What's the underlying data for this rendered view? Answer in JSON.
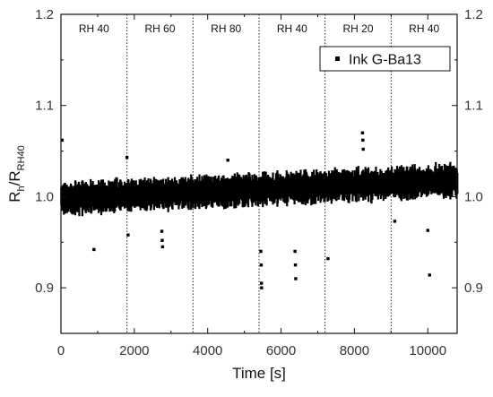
{
  "chart_data": {
    "type": "scatter",
    "xlabel": "Time [s]",
    "ylabel_main": "R",
    "ylabel_sub1": "h",
    "ylabel_mid": "/R",
    "ylabel_sub2": "RH40",
    "xlim": [
      0,
      10800
    ],
    "ylim": [
      0.85,
      1.2
    ],
    "xticks": [
      0,
      2000,
      4000,
      6000,
      8000,
      10000
    ],
    "xtick_labels": [
      "0",
      "2000",
      "4000",
      "6000",
      "8000",
      "10000"
    ],
    "yticks": [
      0.9,
      1.0,
      1.1,
      1.2
    ],
    "ytick_labels": [
      "0.9",
      "1.0",
      "1.1",
      "1.2"
    ],
    "legend": {
      "position": "top-right",
      "label": "Ink G-Ba13"
    },
    "regions": [
      {
        "label": "RH 40",
        "x_start": 0,
        "x_end": 1800
      },
      {
        "label": "RH 60",
        "x_start": 1800,
        "x_end": 3600
      },
      {
        "label": "RH 80",
        "x_start": 3600,
        "x_end": 5400
      },
      {
        "label": "RH 40",
        "x_start": 5400,
        "x_end": 7200
      },
      {
        "label": "RH 20",
        "x_start": 7200,
        "x_end": 9000
      },
      {
        "label": "RH 40",
        "x_start": 9000,
        "x_end": 10800
      }
    ],
    "baseline": {
      "description": "dense noisy band of points",
      "x_start": 0,
      "x_end": 10800,
      "center_start": 0.998,
      "center_end": 1.018,
      "half_width": 0.018
    },
    "outliers": [
      {
        "x": 30,
        "y": 1.062
      },
      {
        "x": 900,
        "y": 0.942
      },
      {
        "x": 1800,
        "y": 1.043
      },
      {
        "x": 1830,
        "y": 0.958
      },
      {
        "x": 2750,
        "y": 0.962
      },
      {
        "x": 2760,
        "y": 0.952
      },
      {
        "x": 2770,
        "y": 0.945
      },
      {
        "x": 4550,
        "y": 1.04
      },
      {
        "x": 5450,
        "y": 0.94
      },
      {
        "x": 5460,
        "y": 0.925
      },
      {
        "x": 5465,
        "y": 0.905
      },
      {
        "x": 5470,
        "y": 0.9
      },
      {
        "x": 6380,
        "y": 0.94
      },
      {
        "x": 6390,
        "y": 0.925
      },
      {
        "x": 6400,
        "y": 0.91
      },
      {
        "x": 7280,
        "y": 0.932
      },
      {
        "x": 8220,
        "y": 1.07
      },
      {
        "x": 8230,
        "y": 1.062
      },
      {
        "x": 8240,
        "y": 1.052
      },
      {
        "x": 9100,
        "y": 0.973
      },
      {
        "x": 10000,
        "y": 0.963
      },
      {
        "x": 10050,
        "y": 0.914
      }
    ],
    "grid": false
  }
}
